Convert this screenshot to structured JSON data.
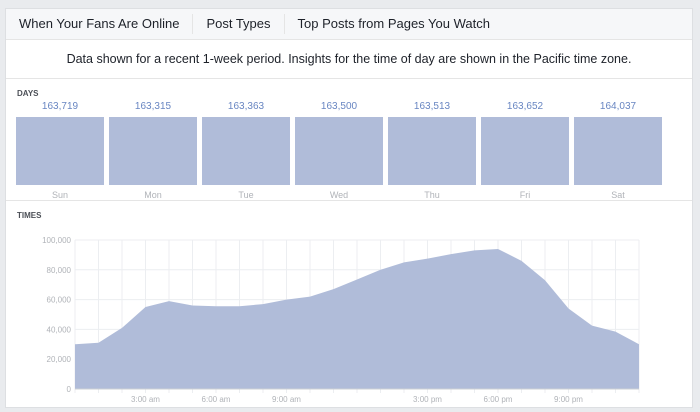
{
  "tabs": [
    "When Your Fans Are Online",
    "Post Types",
    "Top Posts from Pages You Watch"
  ],
  "notice": "Data shown for a recent 1-week period. Insights for the time of day are shown in the Pacific time zone.",
  "days_label": "DAYS",
  "times_label": "TIMES",
  "days": [
    {
      "day": "Sun",
      "value": "163,719"
    },
    {
      "day": "Mon",
      "value": "163,315"
    },
    {
      "day": "Tue",
      "value": "163,363"
    },
    {
      "day": "Wed",
      "value": "163,500"
    },
    {
      "day": "Thu",
      "value": "163,513"
    },
    {
      "day": "Fri",
      "value": "163,652"
    },
    {
      "day": "Sat",
      "value": "164,037"
    }
  ],
  "chart_data": {
    "type": "area",
    "x": [
      0,
      1,
      2,
      3,
      4,
      5,
      6,
      7,
      8,
      9,
      10,
      11,
      12,
      13,
      14,
      15,
      16,
      17,
      18,
      19,
      20,
      21,
      22,
      23,
      24
    ],
    "values": [
      30000,
      31000,
      41000,
      55000,
      59000,
      56000,
      55500,
      55500,
      57000,
      60000,
      62000,
      67000,
      73500,
      80000,
      85000,
      87500,
      90500,
      93000,
      94000,
      86000,
      73000,
      54000,
      42500,
      38500,
      30000
    ],
    "ylim": [
      0,
      100000
    ],
    "yticks": [
      "0",
      "20,000",
      "40,000",
      "60,000",
      "80,000",
      "100,000"
    ],
    "xticks": [
      {
        "hour": 3,
        "label": "3:00 am"
      },
      {
        "hour": 6,
        "label": "6:00 am"
      },
      {
        "hour": 9,
        "label": "9:00 am"
      },
      {
        "hour": 15,
        "label": "3:00 pm"
      },
      {
        "hour": 18,
        "label": "6:00 pm"
      },
      {
        "hour": 21,
        "label": "9:00 pm"
      }
    ],
    "grid": true,
    "color": "#b0bcd9"
  }
}
